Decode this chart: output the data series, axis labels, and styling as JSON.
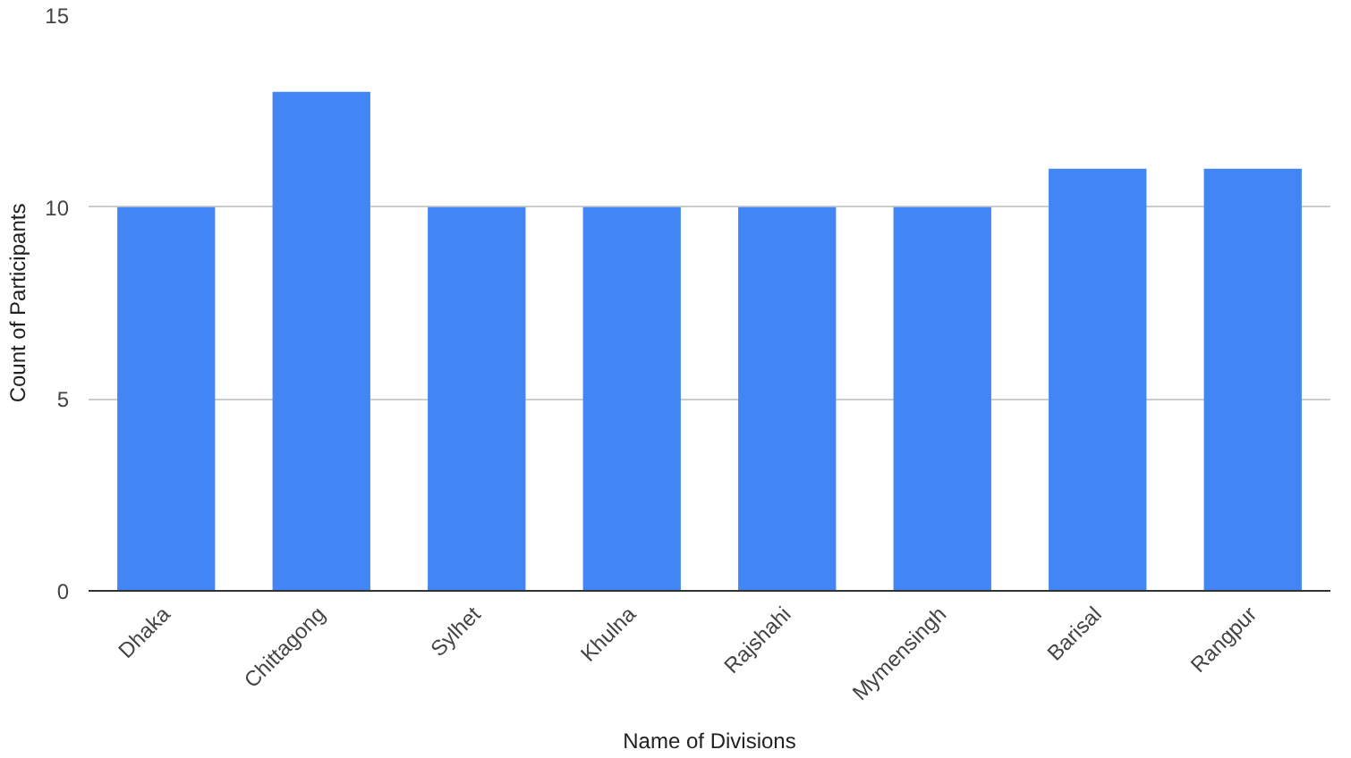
{
  "chart_data": {
    "type": "bar",
    "xlabel": "Name of Divisions",
    "ylabel": "Count of Participants",
    "categories": [
      "Dhaka",
      "Chittagong",
      "Sylhet",
      "Khulna",
      "Rajshahi",
      "Mymensingh",
      "Barisal",
      "Rangpur"
    ],
    "values": [
      10,
      13,
      10,
      10,
      10,
      10,
      11,
      11
    ],
    "color": "#4285f4",
    "ylim": [
      0,
      15
    ],
    "yticks": [
      0,
      5,
      10,
      15
    ],
    "grid": "y"
  }
}
